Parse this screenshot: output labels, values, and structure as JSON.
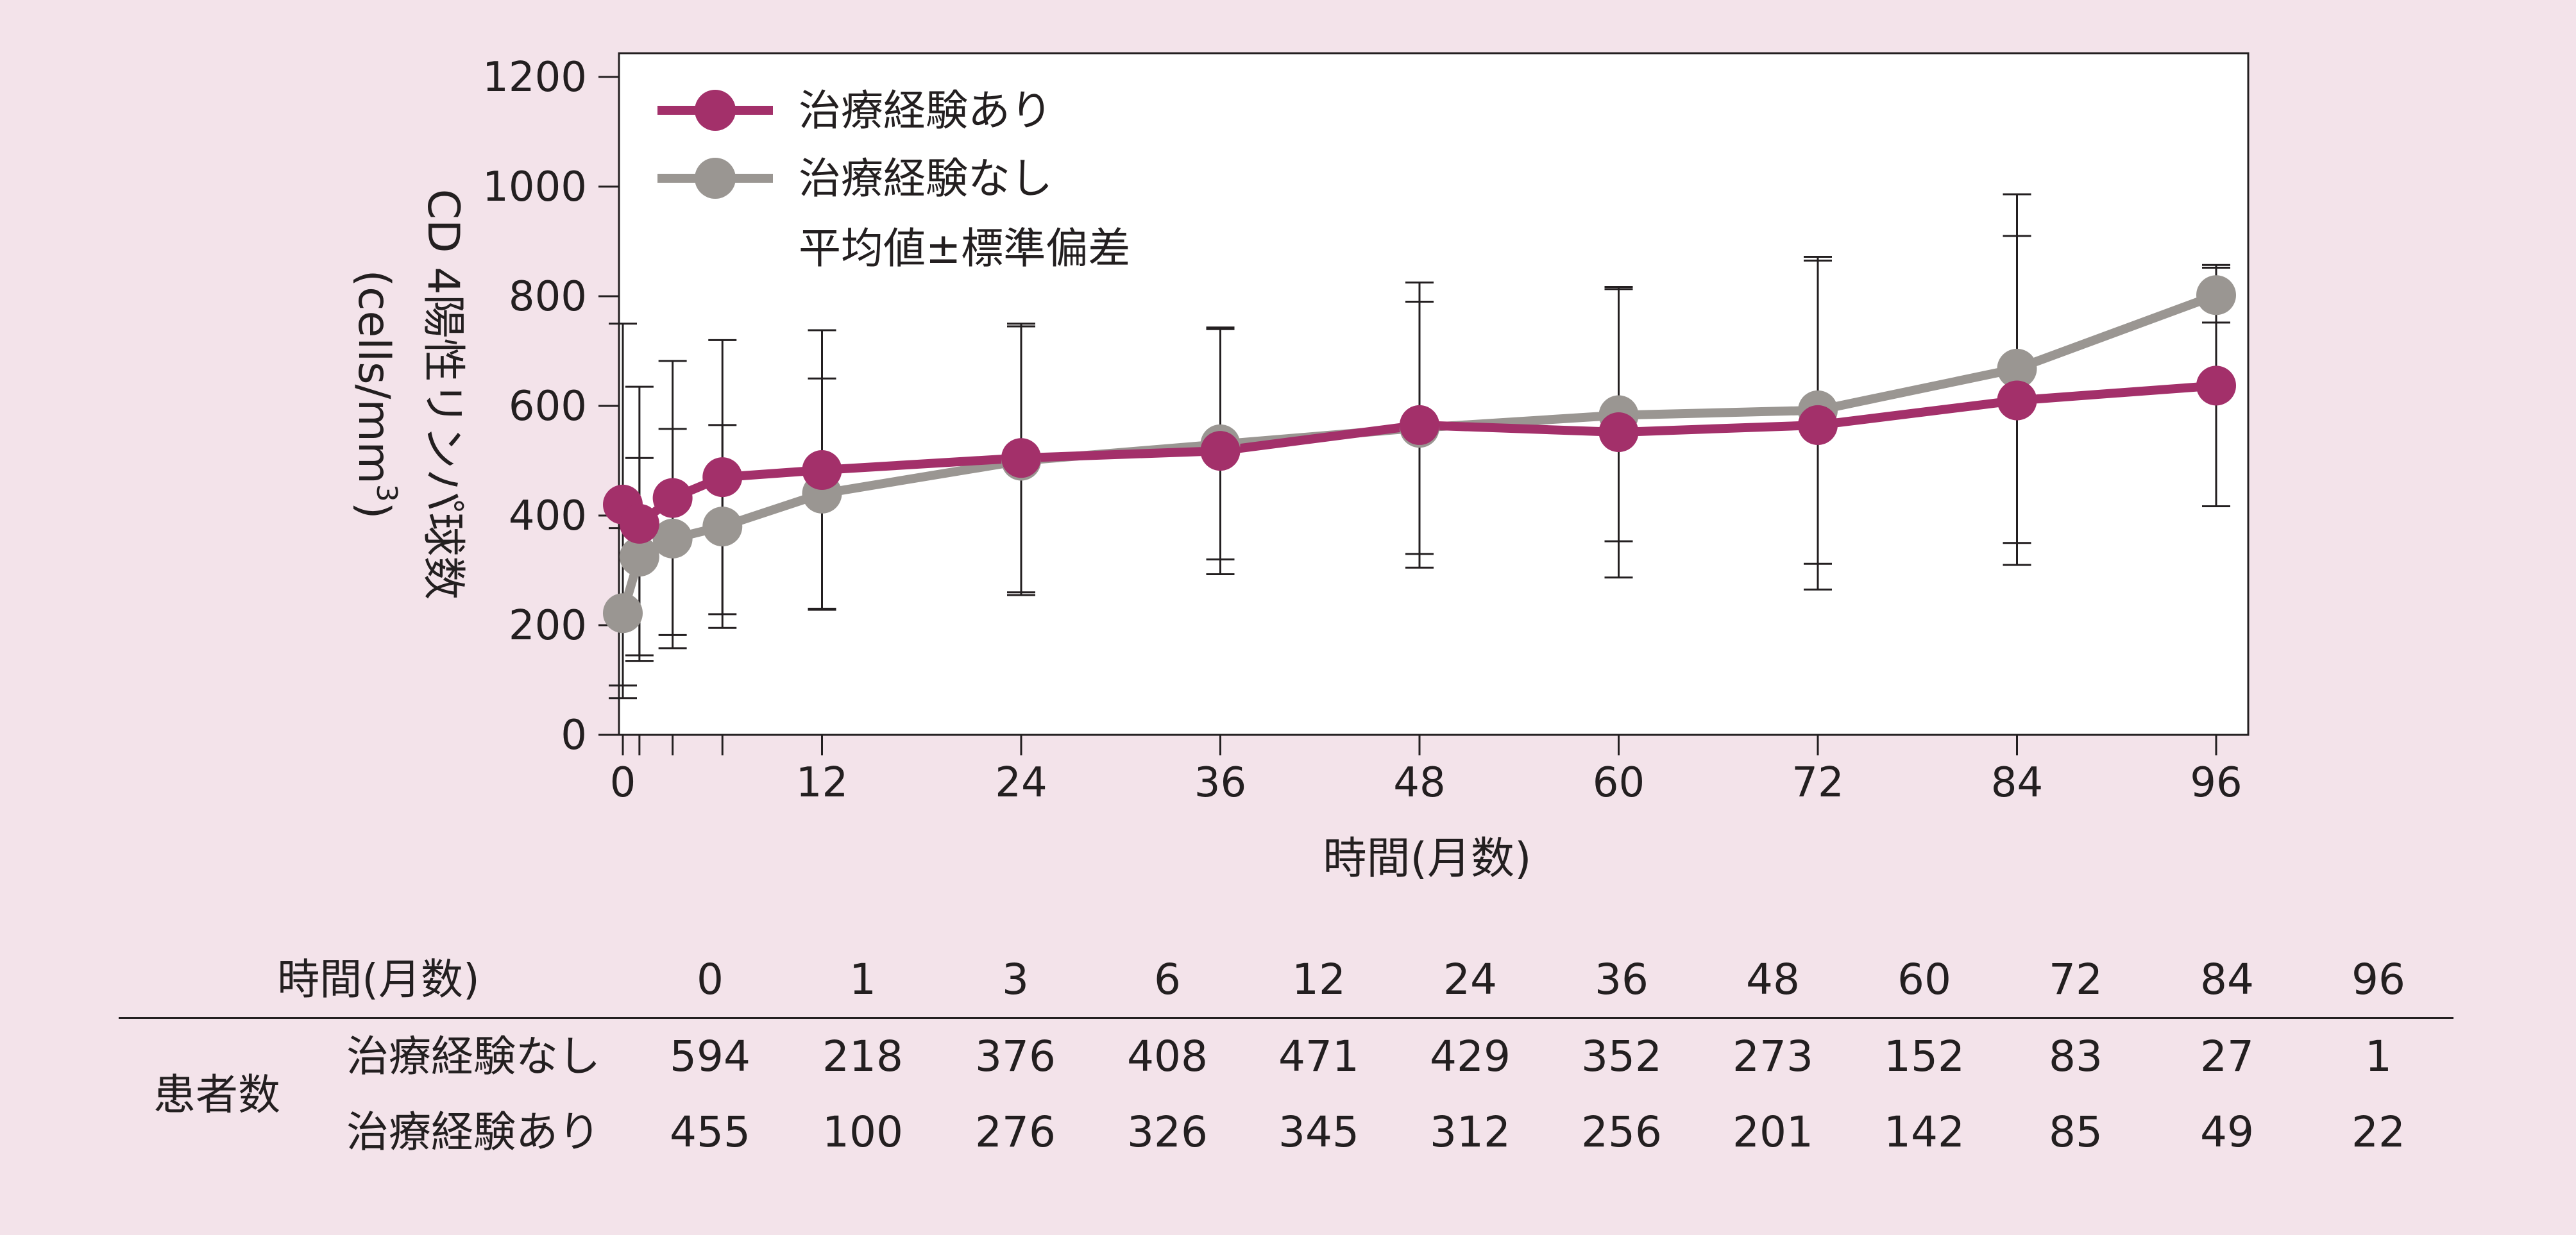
{
  "chart_data": {
    "type": "line",
    "xlabel": "時間(月数)",
    "ylabel": "CD 4陽性リンパ球数",
    "ylabel_unit": "(cells/mm",
    "ylabel_unit_sup": "3",
    "ylabel_unit_close": ")",
    "xlim": [
      -1,
      98
    ],
    "ylim": [
      0,
      1250
    ],
    "xticks": [
      0,
      12,
      24,
      36,
      48,
      60,
      72,
      84,
      96
    ],
    "xminor": [
      1,
      3,
      6
    ],
    "yticks": [
      0,
      200,
      400,
      600,
      800,
      1000,
      1200
    ],
    "legend_position": "top-left",
    "legend_note": "平均値±標準偏差",
    "grid": false,
    "series": [
      {
        "name": "治療経験あり",
        "color": "#a3306a",
        "x": [
          0,
          1,
          3,
          6,
          12,
          24,
          36,
          48,
          60,
          72,
          84,
          96
        ],
        "y": [
          420,
          385,
          432,
          470,
          483,
          505,
          518,
          565,
          552,
          565,
          610,
          637
        ],
        "err": [
          330,
          250,
          250,
          250,
          255,
          245,
          225,
          260,
          265,
          300,
          300,
          220
        ]
      },
      {
        "name": "治療経験なし",
        "color": "#9a9692",
        "x": [
          0,
          1,
          3,
          6,
          12,
          24,
          36,
          48,
          60,
          72,
          84,
          96
        ],
        "y": [
          222,
          325,
          358,
          380,
          440,
          500,
          530,
          560,
          583,
          592,
          668,
          802
        ],
        "err": [
          155,
          180,
          200,
          185,
          210,
          245,
          210,
          230,
          230,
          280,
          318,
          50
        ]
      }
    ]
  },
  "table": {
    "header_label": "時間(月数)",
    "months": [
      "0",
      "1",
      "3",
      "6",
      "12",
      "24",
      "36",
      "48",
      "60",
      "72",
      "84",
      "96"
    ],
    "group_label": "患者数",
    "rows": [
      {
        "label": "治療経験なし",
        "values": [
          "594",
          "218",
          "376",
          "408",
          "471",
          "429",
          "352",
          "273",
          "152",
          "83",
          "27",
          "1"
        ]
      },
      {
        "label": "治療経験あり",
        "values": [
          "455",
          "100",
          "276",
          "326",
          "345",
          "312",
          "256",
          "201",
          "142",
          "85",
          "49",
          "22"
        ]
      }
    ]
  }
}
